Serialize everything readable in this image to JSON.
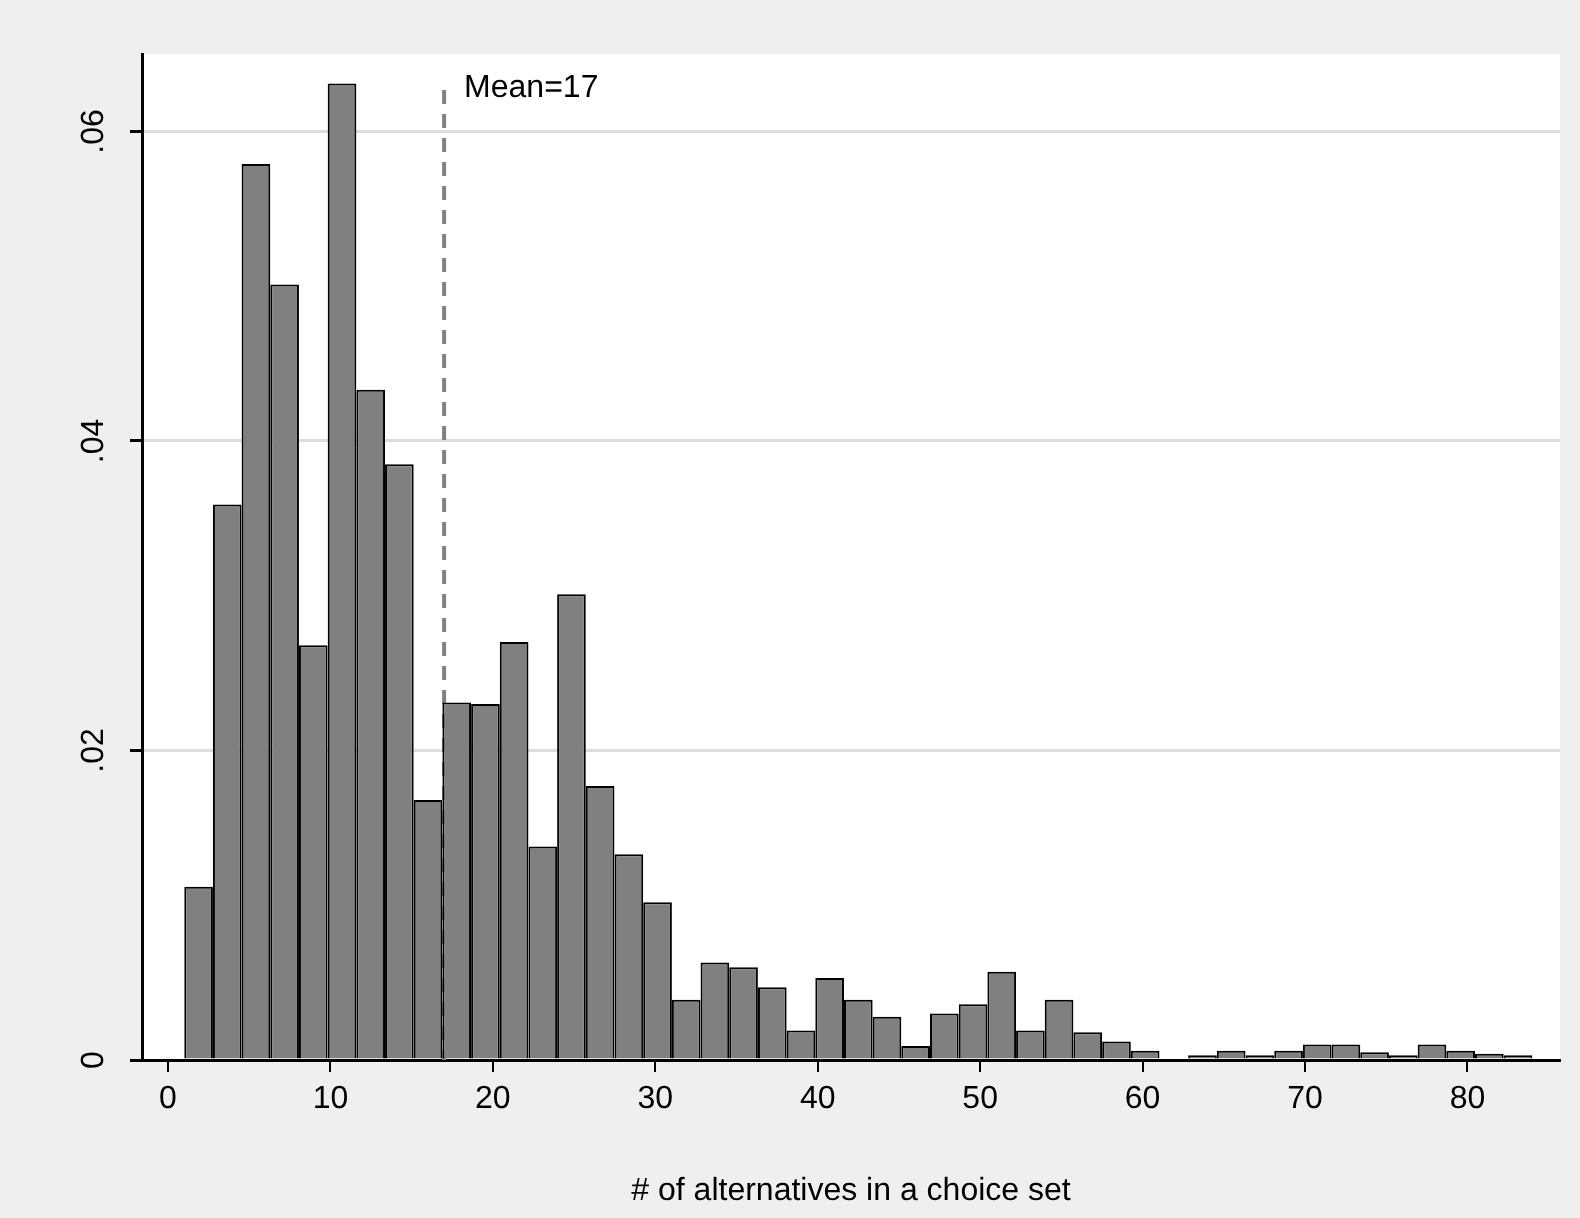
{
  "chart_data": {
    "type": "histogram",
    "xlabel": "# of alternatives in a choice set",
    "bins": [
      1,
      2.77,
      4.53,
      6.3,
      8.06,
      9.83,
      11.6,
      13.36,
      15.13,
      16.89,
      18.66,
      20.43,
      22.19,
      23.96,
      25.72,
      27.49,
      29.26,
      31.02,
      32.79,
      34.55,
      36.32,
      38.09,
      39.85,
      41.62,
      43.38,
      45.15,
      46.91,
      48.68,
      50.45,
      52.21,
      53.98,
      55.74,
      57.51,
      59.28,
      61.04,
      62.81,
      64.57,
      66.34,
      68.11,
      69.87,
      71.64,
      73.4,
      75.17,
      76.94,
      78.7,
      80.47,
      82.23,
      84
    ],
    "values": [
      0.0112,
      0.0359,
      0.0579,
      0.0501,
      0.0268,
      0.0631,
      0.0433,
      0.0385,
      0.0168,
      0.0231,
      0.023,
      0.027,
      0.0138,
      0.0301,
      0.0177,
      0.0133,
      0.0102,
      0.0039,
      0.0063,
      0.006,
      0.0047,
      0.0019,
      0.0053,
      0.0039,
      0.0028,
      0.0009,
      0.003,
      0.0036,
      0.0057,
      0.0019,
      0.0039,
      0.0018,
      0.0012,
      0.0006,
      0.0001,
      0.0003,
      0.0006,
      0.0003,
      0.0006,
      0.001,
      0.001,
      0.0005,
      0.0003,
      0.001,
      0.0006,
      0.0004,
      0.0003
    ],
    "color": "#808080",
    "xlim": [
      -1.6,
      85.7
    ],
    "ylim": [
      0,
      0.065
    ],
    "xticks": [
      0,
      10,
      20,
      30,
      40,
      50,
      60,
      70,
      80
    ],
    "yticks": [
      0,
      {
        "value": 0.02,
        "label": ".02"
      },
      {
        "value": 0.04,
        "label": ".04"
      },
      {
        "value": 0.06,
        "label": ".06"
      }
    ],
    "grid": "y",
    "legend": false,
    "ref_lines": [
      {
        "axis": "x",
        "value": 17,
        "label": "Mean=17",
        "color": "#808080",
        "line_style": "dashed"
      }
    ]
  }
}
